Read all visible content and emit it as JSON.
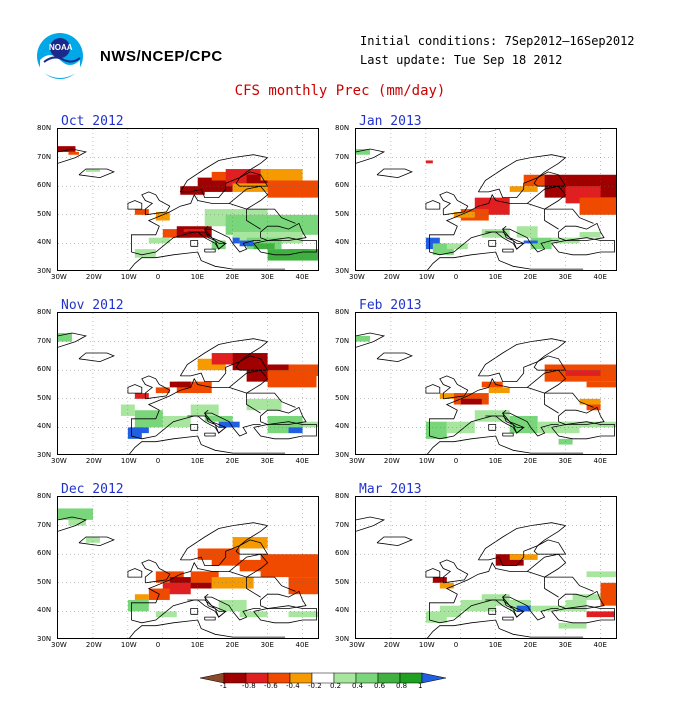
{
  "header": {
    "org": "NWS/NCEP/CPC",
    "initial_conditions": "Initial conditions: 7Sep2012–16Sep2012",
    "last_update": "Last update: Tue Sep 18 2012",
    "title": "CFS monthly Prec (mm/day)",
    "logo_text": "NOAA"
  },
  "axes": {
    "lat_labels": [
      "80N",
      "70N",
      "60N",
      "50N",
      "40N",
      "30N"
    ],
    "lon_labels": [
      "30W",
      "20W",
      "10W",
      "0",
      "10E",
      "20E",
      "30E",
      "40E"
    ]
  },
  "panels": [
    {
      "title": "Oct 2012"
    },
    {
      "title": "Jan 2013"
    },
    {
      "title": "Nov 2012"
    },
    {
      "title": "Feb 2013"
    },
    {
      "title": "Dec 2012"
    },
    {
      "title": "Mar 2013"
    }
  ],
  "legend": {
    "colors": [
      "#8a4a2a",
      "#a00000",
      "#e02020",
      "#f04a00",
      "#f59a00",
      "#ffffff",
      "#a8e6a0",
      "#7ad67a",
      "#40b040",
      "#20a020",
      "#2060e0"
    ],
    "labels": [
      "-1",
      "-0.8",
      "-0.6",
      "-0.4",
      "-0.2",
      "0.2",
      "0.4",
      "0.6",
      "0.8",
      "1"
    ]
  }
}
